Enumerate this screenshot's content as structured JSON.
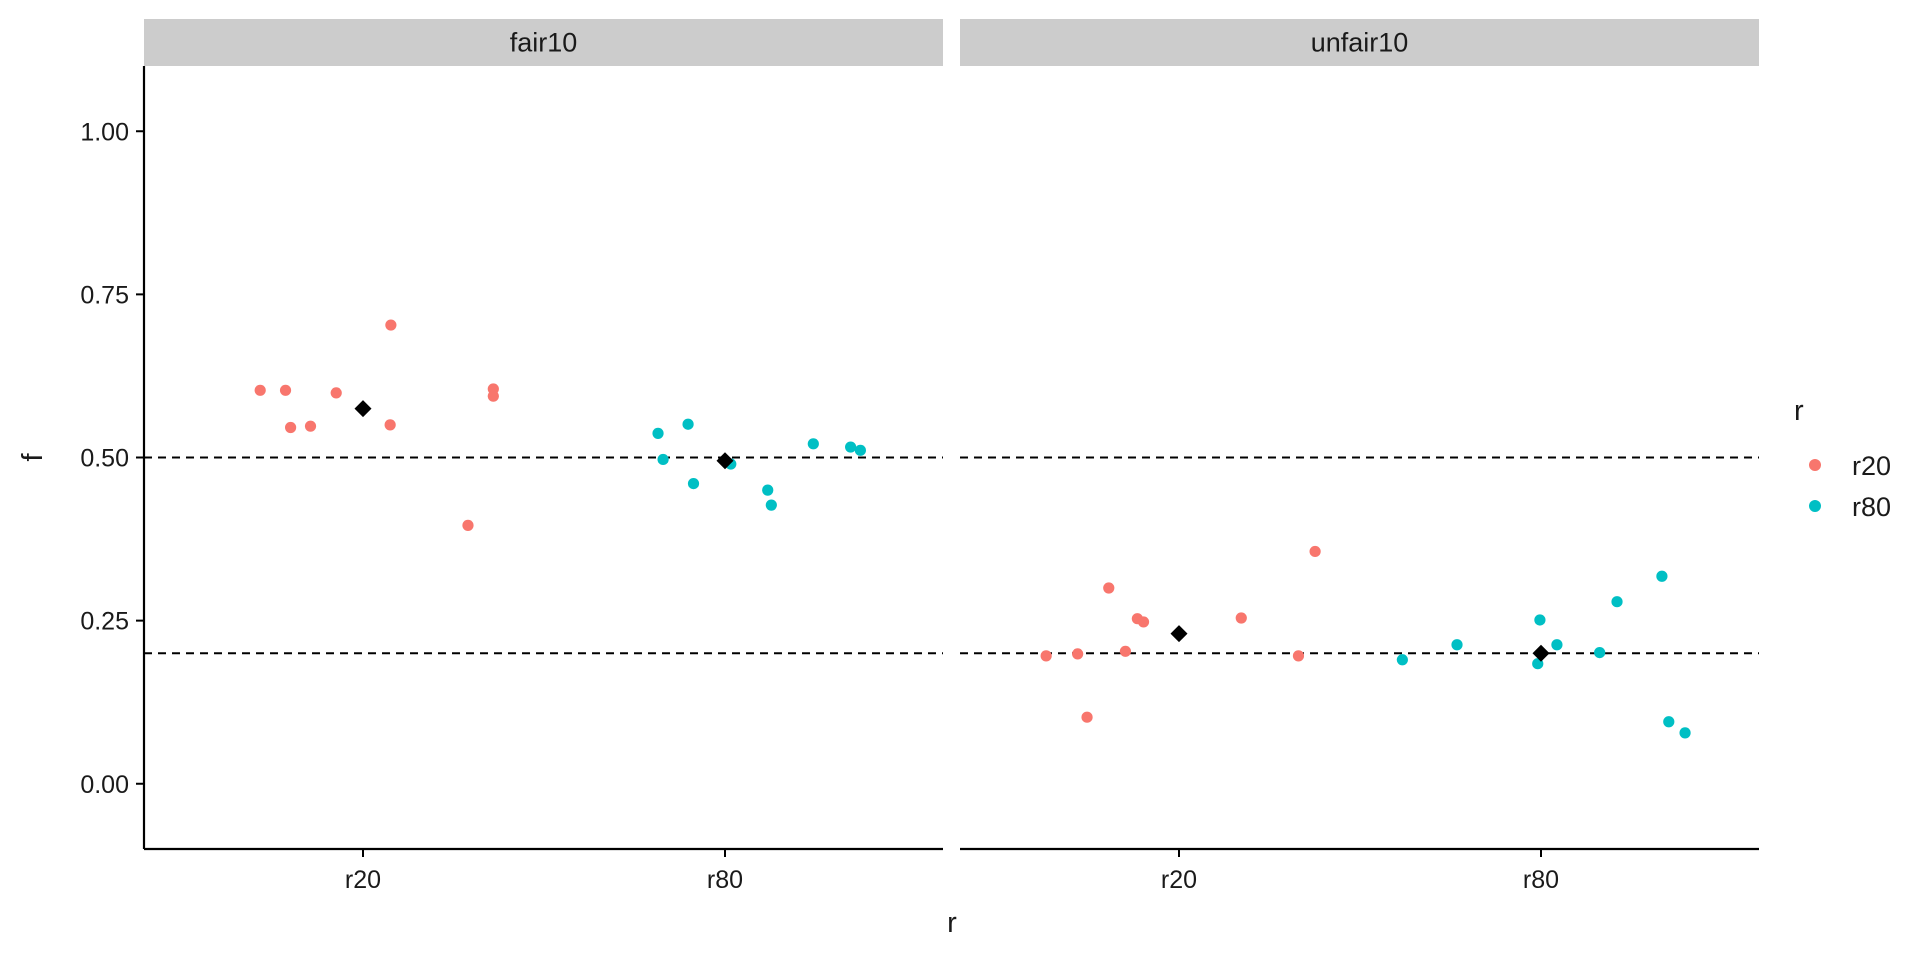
{
  "chart_data": {
    "type": "scatter",
    "xlabel": "r",
    "ylabel": "f",
    "ylim": [
      -0.1,
      1.1
    ],
    "y_ticks": [
      "0.00",
      "0.25",
      "0.50",
      "0.75",
      "1.00"
    ],
    "y_tick_values": [
      0,
      0.25,
      0.5,
      0.75,
      1.0
    ],
    "categories": [
      "r20",
      "r80"
    ],
    "grid": false,
    "legend": {
      "title": "r",
      "placement": "right",
      "items": [
        {
          "label": "r20",
          "color": "#F8766D"
        },
        {
          "label": "r80",
          "color": "#00BFC4"
        }
      ]
    },
    "mean_marker_color": "#000000",
    "reference_line_color": "#000000",
    "strip_color": "#cccccc",
    "panels": [
      {
        "strip": "fair10",
        "hlines": [
          0.5,
          0.2
        ],
        "means": [
          {
            "category": "r20",
            "f": 0.575
          },
          {
            "category": "r80",
            "f": 0.495
          }
        ],
        "series": [
          {
            "name": "r20",
            "color": "#F8766D",
            "points": [
              {
                "x": 0.716,
                "f": 0.603
              },
              {
                "x": 0.786,
                "f": 0.603
              },
              {
                "x": 0.8,
                "f": 0.546
              },
              {
                "x": 0.855,
                "f": 0.548
              },
              {
                "x": 0.926,
                "f": 0.599
              },
              {
                "x": 1.077,
                "f": 0.703
              },
              {
                "x": 1.075,
                "f": 0.55
              },
              {
                "x": 1.29,
                "f": 0.396
              },
              {
                "x": 1.36,
                "f": 0.605
              },
              {
                "x": 1.36,
                "f": 0.594
              }
            ]
          },
          {
            "name": "r80",
            "color": "#00BFC4",
            "points": [
              {
                "x": 1.815,
                "f": 0.537
              },
              {
                "x": 1.829,
                "f": 0.497
              },
              {
                "x": 1.898,
                "f": 0.551
              },
              {
                "x": 1.913,
                "f": 0.46
              },
              {
                "x": 2.016,
                "f": 0.49
              },
              {
                "x": 2.118,
                "f": 0.45
              },
              {
                "x": 2.128,
                "f": 0.427
              },
              {
                "x": 2.244,
                "f": 0.521
              },
              {
                "x": 2.347,
                "f": 0.516
              },
              {
                "x": 2.374,
                "f": 0.511
              }
            ]
          }
        ]
      },
      {
        "strip": "unfair10",
        "hlines": [
          0.5,
          0.2
        ],
        "means": [
          {
            "category": "r20",
            "f": 0.23
          },
          {
            "category": "r80",
            "f": 0.2
          }
        ],
        "series": [
          {
            "name": "r20",
            "color": "#F8766D",
            "points": [
              {
                "x": 0.633,
                "f": 0.196
              },
              {
                "x": 0.72,
                "f": 0.199
              },
              {
                "x": 0.746,
                "f": 0.102
              },
              {
                "x": 0.806,
                "f": 0.3
              },
              {
                "x": 0.852,
                "f": 0.203
              },
              {
                "x": 0.885,
                "f": 0.253
              },
              {
                "x": 0.902,
                "f": 0.248
              },
              {
                "x": 1.172,
                "f": 0.254
              },
              {
                "x": 1.33,
                "f": 0.196
              },
              {
                "x": 1.376,
                "f": 0.356
              }
            ]
          },
          {
            "name": "r80",
            "color": "#00BFC4",
            "points": [
              {
                "x": 1.617,
                "f": 0.19
              },
              {
                "x": 1.768,
                "f": 0.213
              },
              {
                "x": 1.991,
                "f": 0.184
              },
              {
                "x": 1.997,
                "f": 0.251
              },
              {
                "x": 2.044,
                "f": 0.213
              },
              {
                "x": 2.162,
                "f": 0.201
              },
              {
                "x": 2.21,
                "f": 0.279
              },
              {
                "x": 2.334,
                "f": 0.318
              },
              {
                "x": 2.353,
                "f": 0.095
              },
              {
                "x": 2.398,
                "f": 0.078
              }
            ]
          }
        ]
      }
    ]
  }
}
